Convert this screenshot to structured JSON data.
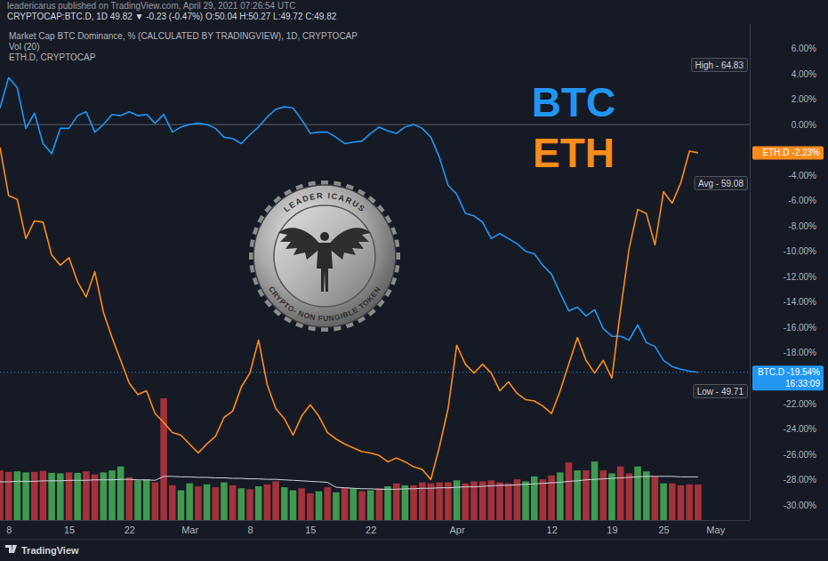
{
  "chart_data": {
    "type": "line",
    "subtitle": "leadericarus published on TradingView.com, April 29, 2021 07:26:54 UTC",
    "title": "CRYPTOCAP:BTC.D, 1D 49.82 ▼ -0.23 (-0.47%) O:50.04 H:50.27 L:49.72 C:49.82",
    "x": [
      "2021-02-07",
      "2021-02-08",
      "2021-02-09",
      "2021-02-10",
      "2021-02-11",
      "2021-02-12",
      "2021-02-13",
      "2021-02-14",
      "2021-02-15",
      "2021-02-16",
      "2021-02-17",
      "2021-02-18",
      "2021-02-19",
      "2021-02-20",
      "2021-02-21",
      "2021-02-22",
      "2021-02-23",
      "2021-02-24",
      "2021-02-25",
      "2021-02-26",
      "2021-02-27",
      "2021-02-28",
      "2021-03-01",
      "2021-03-02",
      "2021-03-03",
      "2021-03-04",
      "2021-03-05",
      "2021-03-06",
      "2021-03-07",
      "2021-03-08",
      "2021-03-09",
      "2021-03-10",
      "2021-03-11",
      "2021-03-12",
      "2021-03-13",
      "2021-03-14",
      "2021-03-15",
      "2021-03-16",
      "2021-03-17",
      "2021-03-18",
      "2021-03-19",
      "2021-03-20",
      "2021-03-21",
      "2021-03-22",
      "2021-03-23",
      "2021-03-24",
      "2021-03-25",
      "2021-03-26",
      "2021-03-27",
      "2021-03-28",
      "2021-03-29",
      "2021-03-30",
      "2021-03-31",
      "2021-04-01",
      "2021-04-02",
      "2021-04-03",
      "2021-04-04",
      "2021-04-05",
      "2021-04-06",
      "2021-04-07",
      "2021-04-08",
      "2021-04-09",
      "2021-04-10",
      "2021-04-11",
      "2021-04-12",
      "2021-04-13",
      "2021-04-14",
      "2021-04-15",
      "2021-04-16",
      "2021-04-17",
      "2021-04-18",
      "2021-04-19",
      "2021-04-20",
      "2021-04-21",
      "2021-04-22",
      "2021-04-23",
      "2021-04-24",
      "2021-04-25",
      "2021-04-26",
      "2021-04-27",
      "2021-04-28",
      "2021-04-29"
    ],
    "xlim": [
      "2021-02-07",
      "2021-05-05"
    ],
    "xticks": [
      {
        "value": "2021-02-08",
        "label": "8"
      },
      {
        "value": "2021-02-15",
        "label": "15"
      },
      {
        "value": "2021-02-22",
        "label": "22"
      },
      {
        "value": "2021-03-01",
        "label": "Mar"
      },
      {
        "value": "2021-03-08",
        "label": "8"
      },
      {
        "value": "2021-03-15",
        "label": "15"
      },
      {
        "value": "2021-03-22",
        "label": "22"
      },
      {
        "value": "2021-04-01",
        "label": "Apr"
      },
      {
        "value": "2021-04-12",
        "label": "12"
      },
      {
        "value": "2021-04-19",
        "label": "19"
      },
      {
        "value": "2021-04-25",
        "label": "25"
      },
      {
        "value": "2021-05-01",
        "label": "May"
      }
    ],
    "ylim": [
      -31.2,
      8.0
    ],
    "yticks": [
      {
        "value": 6,
        "label": "6.00%"
      },
      {
        "value": 4,
        "label": "4.00%"
      },
      {
        "value": 2,
        "label": "2.00%"
      },
      {
        "value": 0,
        "label": "0.00%"
      },
      {
        "value": -4,
        "label": "-4.00%"
      },
      {
        "value": -6,
        "label": "-6.00%"
      },
      {
        "value": -8,
        "label": "-8.00%"
      },
      {
        "value": -10,
        "label": "-10.00%"
      },
      {
        "value": -12,
        "label": "-12.00%"
      },
      {
        "value": -14,
        "label": "-14.00%"
      },
      {
        "value": -16,
        "label": "-16.00%"
      },
      {
        "value": -18,
        "label": "-18.00%"
      },
      {
        "value": -22,
        "label": "-22.00%"
      },
      {
        "value": -24,
        "label": "-24.00%"
      },
      {
        "value": -26,
        "label": "-26.00%"
      },
      {
        "value": -28,
        "label": "-28.00%"
      },
      {
        "value": -30,
        "label": "-30.00%"
      }
    ],
    "y2lim": [
      0,
      100
    ],
    "y2ticks": [],
    "grid": false,
    "legend": "top-left",
    "series": [
      {
        "name": "Market Cap BTC Dominance, % (CALCULATED BY TRADINGVIEW), 1D, CRYPTOCAP",
        "type": "line",
        "color": "#2196f3",
        "values": [
          1.3,
          3.7,
          2.9,
          -0.3,
          0.9,
          -1.5,
          -2.3,
          -0.3,
          -0.3,
          0.7,
          1.0,
          -0.6,
          0.0,
          0.8,
          0.7,
          1.0,
          0.7,
          0.8,
          0.1,
          0.8,
          -0.6,
          -0.2,
          0.0,
          0.1,
          0.0,
          -0.3,
          -1.0,
          -1.1,
          -1.5,
          -0.8,
          -0.2,
          0.6,
          1.2,
          1.4,
          1.3,
          0.4,
          -0.7,
          -0.6,
          -0.6,
          -1.0,
          -1.5,
          -1.4,
          -1.3,
          -0.7,
          -0.2,
          -0.5,
          -0.7,
          -0.2,
          0.0,
          -0.3,
          -1.0,
          -2.6,
          -4.8,
          -5.5,
          -7.0,
          -7.2,
          -7.7,
          -9.0,
          -8.6,
          -9.0,
          -9.4,
          -10.0,
          -10.2,
          -11.1,
          -11.8,
          -13.3,
          -14.7,
          -14.4,
          -15.1,
          -14.6,
          -16.1,
          -16.7,
          -16.7,
          -17.0,
          -15.8,
          -17.2,
          -17.5,
          -18.6,
          -19.1,
          -19.3,
          -19.45,
          -19.54
        ]
      },
      {
        "name": "Vol (20)",
        "type": "bar",
        "axis": "y2",
        "values": [
          10.0,
          9.7,
          9.8,
          9.6,
          9.7,
          9.9,
          9.5,
          9.4,
          9.6,
          9.5,
          9.8,
          9.2,
          9.6,
          10.0,
          10.8,
          8.6,
          8.0,
          8.2,
          7.6,
          24.5,
          7.0,
          6.0,
          7.4,
          6.8,
          7.2,
          6.6,
          7.6,
          7.0,
          6.4,
          6.2,
          6.8,
          7.2,
          7.8,
          6.6,
          6.0,
          6.4,
          5.4,
          5.8,
          6.6,
          5.6,
          6.6,
          6.4,
          5.8,
          6.0,
          6.4,
          6.8,
          7.4,
          7.0,
          7.0,
          7.6,
          7.4,
          7.6,
          7.6,
          8.0,
          7.4,
          7.8,
          7.8,
          8.0,
          7.6,
          7.4,
          8.2,
          7.8,
          8.8,
          8.2,
          9.0,
          9.6,
          11.6,
          10.0,
          10.0,
          11.8,
          10.0,
          9.4,
          10.8,
          9.4,
          10.8,
          9.8,
          8.8,
          7.4,
          7.4,
          7.0,
          7.2,
          7.2
        ],
        "colors": [
          "#a3323b",
          "#a3323b",
          "#3f9a50",
          "#3f9a50",
          "#a3323b",
          "#a3323b",
          "#3f9a50",
          "#3f9a50",
          "#a3323b",
          "#3f9a50",
          "#a3323b",
          "#a3323b",
          "#3f9a50",
          "#3f9a50",
          "#3f9a50",
          "#a3323b",
          "#3f9a50",
          "#3f9a50",
          "#a3323b",
          "#a3323b",
          "#a3323b",
          "#3f9a50",
          "#3f9a50",
          "#a3323b",
          "#3f9a50",
          "#a3323b",
          "#3f9a50",
          "#a3323b",
          "#3f9a50",
          "#a3323b",
          "#3f9a50",
          "#a3323b",
          "#a3323b",
          "#3f9a50",
          "#3f9a50",
          "#a3323b",
          "#a3323b",
          "#3f9a50",
          "#a3323b",
          "#3f9a50",
          "#a3323b",
          "#3f9a50",
          "#a3323b",
          "#3f9a50",
          "#a3323b",
          "#3f9a50",
          "#a3323b",
          "#3f9a50",
          "#a3323b",
          "#a3323b",
          "#a3323b",
          "#a3323b",
          "#a3323b",
          "#3f9a50",
          "#a3323b",
          "#a3323b",
          "#a3323b",
          "#a3323b",
          "#a3323b",
          "#a3323b",
          "#a3323b",
          "#3f9a50",
          "#3f9a50",
          "#a3323b",
          "#a3323b",
          "#3f9a50",
          "#a3323b",
          "#3f9a50",
          "#a3323b",
          "#3f9a50",
          "#a3323b",
          "#3f9a50",
          "#a3323b",
          "#a3323b",
          "#3f9a50",
          "#3f9a50",
          "#a3323b",
          "#3f9a50",
          "#a3323b",
          "#a3323b",
          "#a3323b",
          "#a3323b"
        ],
        "ma_values": [
          7.7,
          7.7,
          7.8,
          7.8,
          7.8,
          7.9,
          7.9,
          7.9,
          8.0,
          8.0,
          8.0,
          8.1,
          8.1,
          8.1,
          8.2,
          8.2,
          8.1,
          8.1,
          8.0,
          8.8,
          8.8,
          8.7,
          8.7,
          8.6,
          8.6,
          8.5,
          8.5,
          8.4,
          8.4,
          8.3,
          8.3,
          8.2,
          8.2,
          8.1,
          8.0,
          7.9,
          7.8,
          7.7,
          7.6,
          6.6,
          6.5,
          6.4,
          6.3,
          6.3,
          6.2,
          6.2,
          6.2,
          6.3,
          6.3,
          6.4,
          6.4,
          6.5,
          6.5,
          6.6,
          6.7,
          6.7,
          6.8,
          6.9,
          7.0,
          7.0,
          7.1,
          7.2,
          7.3,
          7.4,
          7.5,
          7.6,
          7.8,
          7.9,
          8.1,
          8.2,
          8.3,
          8.4,
          8.5,
          8.6,
          8.7,
          8.8,
          8.8,
          8.8,
          8.8,
          8.7,
          8.7,
          8.7
        ]
      },
      {
        "name": "ETH.D, CRYPTOCAP",
        "type": "line",
        "color": "#fb8c1c",
        "values": [
          -1.8,
          -5.6,
          -5.9,
          -9.0,
          -7.6,
          -7.7,
          -10.3,
          -11.1,
          -10.5,
          -12.4,
          -13.6,
          -11.6,
          -14.8,
          -16.8,
          -18.6,
          -20.4,
          -21.3,
          -21.0,
          -22.8,
          -23.5,
          -24.3,
          -24.5,
          -25.2,
          -25.9,
          -25.2,
          -24.6,
          -23.1,
          -22.6,
          -20.7,
          -19.6,
          -17.0,
          -20.5,
          -22.4,
          -23.2,
          -24.5,
          -23.0,
          -22.1,
          -23.0,
          -24.3,
          -24.8,
          -25.2,
          -25.5,
          -25.8,
          -25.9,
          -26.1,
          -26.6,
          -26.3,
          -26.6,
          -27.0,
          -27.2,
          -28.0,
          -25.4,
          -22.4,
          -17.4,
          -18.9,
          -19.6,
          -18.9,
          -19.6,
          -21.0,
          -20.3,
          -21.2,
          -21.7,
          -21.8,
          -22.2,
          -22.8,
          -21.0,
          -18.9,
          -16.8,
          -18.6,
          -19.6,
          -18.6,
          -20.0,
          -14.7,
          -9.8,
          -6.7,
          -7.0,
          -9.5,
          -5.3,
          -6.2,
          -4.6,
          -2.1,
          -2.23
        ]
      }
    ],
    "annotations": [
      "BTC",
      "ETH",
      "High - 64.83",
      "Avg - 59.08",
      "Low - 49.71",
      "ETH.D -2.23%",
      "BTC.D -19.54%",
      "16:33:09",
      "LEADER ICARUS",
      "CRYPTO- NON FUNGIBLE TOKEN",
      "TradingView"
    ]
  }
}
